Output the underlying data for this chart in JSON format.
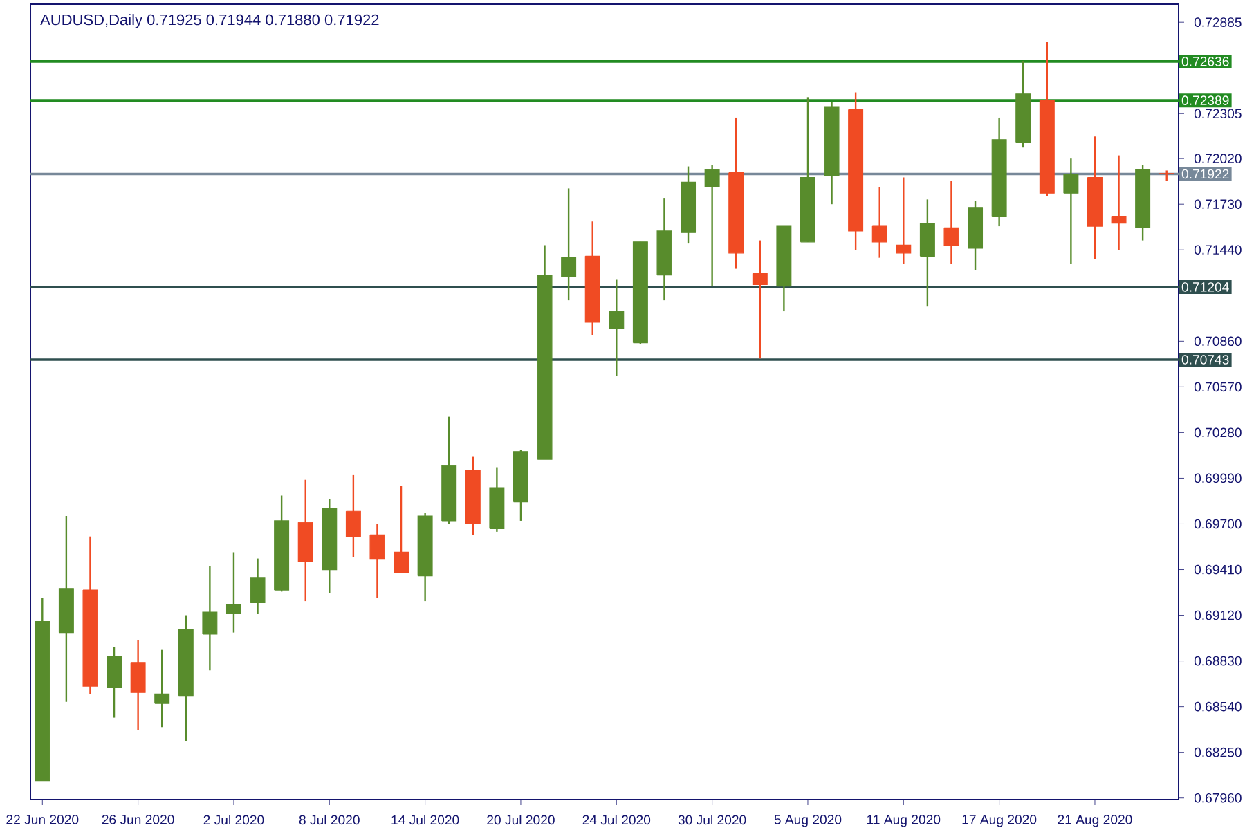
{
  "chart_data": {
    "type": "candlestick",
    "title": "AUDUSD,Daily  0.71925 0.71944 0.71880 0.71922",
    "categories": [
      "22 Jun 2020",
      null,
      null,
      null,
      "26 Jun 2020",
      null,
      null,
      null,
      "2 Jul 2020",
      null,
      null,
      null,
      "8 Jul 2020",
      null,
      null,
      null,
      "14 Jul 2020",
      null,
      null,
      null,
      "20 Jul 2020",
      null,
      null,
      null,
      "24 Jul 2020",
      null,
      null,
      null,
      "30 Jul 2020",
      null,
      null,
      null,
      "5 Aug 2020",
      null,
      null,
      null,
      "11 Aug 2020",
      null,
      null,
      null,
      "17 Aug 2020",
      null,
      null,
      null,
      "21 Aug 2020",
      null,
      null,
      null
    ],
    "ohlc": [
      [
        0.6807,
        0.6923,
        0.6807,
        0.6908
      ],
      [
        0.6901,
        0.6975,
        0.6857,
        0.6929
      ],
      [
        0.6928,
        0.6962,
        0.6862,
        0.6867
      ],
      [
        0.6866,
        0.6892,
        0.6847,
        0.6886
      ],
      [
        0.6882,
        0.6896,
        0.6839,
        0.6863
      ],
      [
        0.6856,
        0.689,
        0.6841,
        0.6862
      ],
      [
        0.6861,
        0.6912,
        0.6832,
        0.6903
      ],
      [
        0.69,
        0.6943,
        0.6877,
        0.6914
      ],
      [
        0.6913,
        0.6952,
        0.6901,
        0.6919
      ],
      [
        0.692,
        0.6948,
        0.6913,
        0.6936
      ],
      [
        0.6928,
        0.6988,
        0.6927,
        0.6972
      ],
      [
        0.6971,
        0.6998,
        0.6921,
        0.6946
      ],
      [
        0.6941,
        0.6986,
        0.6926,
        0.698
      ],
      [
        0.6978,
        0.7001,
        0.6949,
        0.6962
      ],
      [
        0.6963,
        0.697,
        0.6923,
        0.6948
      ],
      [
        0.6952,
        0.6994,
        0.6939,
        0.6939
      ],
      [
        0.6937,
        0.6977,
        0.6921,
        0.6975
      ],
      [
        0.6972,
        0.7038,
        0.697,
        0.7007
      ],
      [
        0.7004,
        0.7013,
        0.6963,
        0.697
      ],
      [
        0.6967,
        0.7006,
        0.6965,
        0.6993
      ],
      [
        0.6984,
        0.7017,
        0.6972,
        0.7016
      ],
      [
        0.7011,
        0.7147,
        0.7011,
        0.7128
      ],
      [
        0.7127,
        0.7183,
        0.7112,
        0.7139
      ],
      [
        0.714,
        0.7162,
        0.709,
        0.7098
      ],
      [
        0.7094,
        0.7125,
        0.7064,
        0.7105
      ],
      [
        0.7085,
        0.7149,
        0.7084,
        0.7149
      ],
      [
        0.7128,
        0.7177,
        0.7112,
        0.7156
      ],
      [
        0.7155,
        0.7197,
        0.7148,
        0.7187
      ],
      [
        0.7184,
        0.7198,
        0.7121,
        0.7195
      ],
      [
        0.7193,
        0.7228,
        0.7132,
        0.7142
      ],
      [
        0.7129,
        0.715,
        0.7075,
        0.7122
      ],
      [
        0.7121,
        0.7159,
        0.7105,
        0.7159
      ],
      [
        0.7149,
        0.7241,
        0.7149,
        0.719
      ],
      [
        0.7191,
        0.7238,
        0.7173,
        0.7235
      ],
      [
        0.7233,
        0.7244,
        0.7144,
        0.7156
      ],
      [
        0.7159,
        0.7184,
        0.7139,
        0.7149
      ],
      [
        0.7147,
        0.719,
        0.7135,
        0.7142
      ],
      [
        0.714,
        0.7176,
        0.7108,
        0.7161
      ],
      [
        0.7158,
        0.7188,
        0.7135,
        0.7147
      ],
      [
        0.7145,
        0.7175,
        0.7131,
        0.7171
      ],
      [
        0.7165,
        0.7228,
        0.7159,
        0.7214
      ],
      [
        0.7212,
        0.7264,
        0.7209,
        0.7243
      ],
      [
        0.7239,
        0.7276,
        0.7178,
        0.718
      ],
      [
        0.718,
        0.7202,
        0.7135,
        0.7192
      ],
      [
        0.719,
        0.7216,
        0.7138,
        0.7159
      ],
      [
        0.7165,
        0.7204,
        0.7144,
        0.7161
      ],
      [
        0.7158,
        0.7198,
        0.715,
        0.7195
      ],
      [
        0.71925,
        0.71944,
        0.7188,
        0.71922
      ]
    ],
    "colors": [
      "#588c2c",
      "#588c2c",
      "#f04b23",
      "#588c2c",
      "#f04b23",
      "#588c2c",
      "#588c2c",
      "#588c2c",
      "#588c2c",
      "#588c2c",
      "#588c2c",
      "#f04b23",
      "#588c2c",
      "#f04b23",
      "#f04b23",
      "#f04b23",
      "#588c2c",
      "#588c2c",
      "#f04b23",
      "#588c2c",
      "#588c2c",
      "#588c2c",
      "#588c2c",
      "#f04b23",
      "#588c2c",
      "#588c2c",
      "#588c2c",
      "#588c2c",
      "#588c2c",
      "#f04b23",
      "#f04b23",
      "#588c2c",
      "#588c2c",
      "#588c2c",
      "#f04b23",
      "#f04b23",
      "#f04b23",
      "#588c2c",
      "#f04b23",
      "#588c2c",
      "#588c2c",
      "#588c2c",
      "#f04b23",
      "#588c2c",
      "#f04b23",
      "#f04b23",
      "#588c2c",
      "#f04b23"
    ],
    "ylim": [
      0.6795,
      0.73
    ],
    "yticks": [
      0.72885,
      0.72305,
      {
        "value": 0.7202,
        "label": "0.72020"
      },
      {
        "value": 0.7173,
        "label": "0.71730"
      },
      {
        "value": 0.7144,
        "label": "0.71440"
      },
      {
        "value": 0.7086,
        "label": "0.70860"
      },
      {
        "value": 0.7057,
        "label": "0.70570"
      },
      {
        "value": 0.7028,
        "label": "0.70280"
      },
      {
        "value": 0.6999,
        "label": "0.69990"
      },
      {
        "value": 0.697,
        "label": "0.69700"
      },
      {
        "value": 0.6941,
        "label": "0.69410"
      },
      {
        "value": 0.6912,
        "label": "0.69120"
      },
      {
        "value": 0.6883,
        "label": "0.68830"
      },
      {
        "value": 0.6854,
        "label": "0.68540"
      },
      {
        "value": 0.6825,
        "label": "0.68250"
      },
      {
        "value": 0.6796,
        "label": "0.67960"
      }
    ],
    "ref_lines": [
      {
        "axis": "y",
        "value": 0.72636,
        "label": "0.72636",
        "color": "#228b22"
      },
      {
        "axis": "y",
        "value": 0.72389,
        "label": "0.72389",
        "color": "#228b22"
      },
      {
        "axis": "y",
        "value": 0.71922,
        "label": "0.71922",
        "color": "#778899"
      },
      {
        "axis": "y",
        "value": 0.71204,
        "label": "0.71204",
        "color": "#2f4f4f"
      },
      {
        "axis": "y",
        "value": 0.70743,
        "label": "0.70743",
        "color": "#2f4f4f"
      }
    ]
  }
}
